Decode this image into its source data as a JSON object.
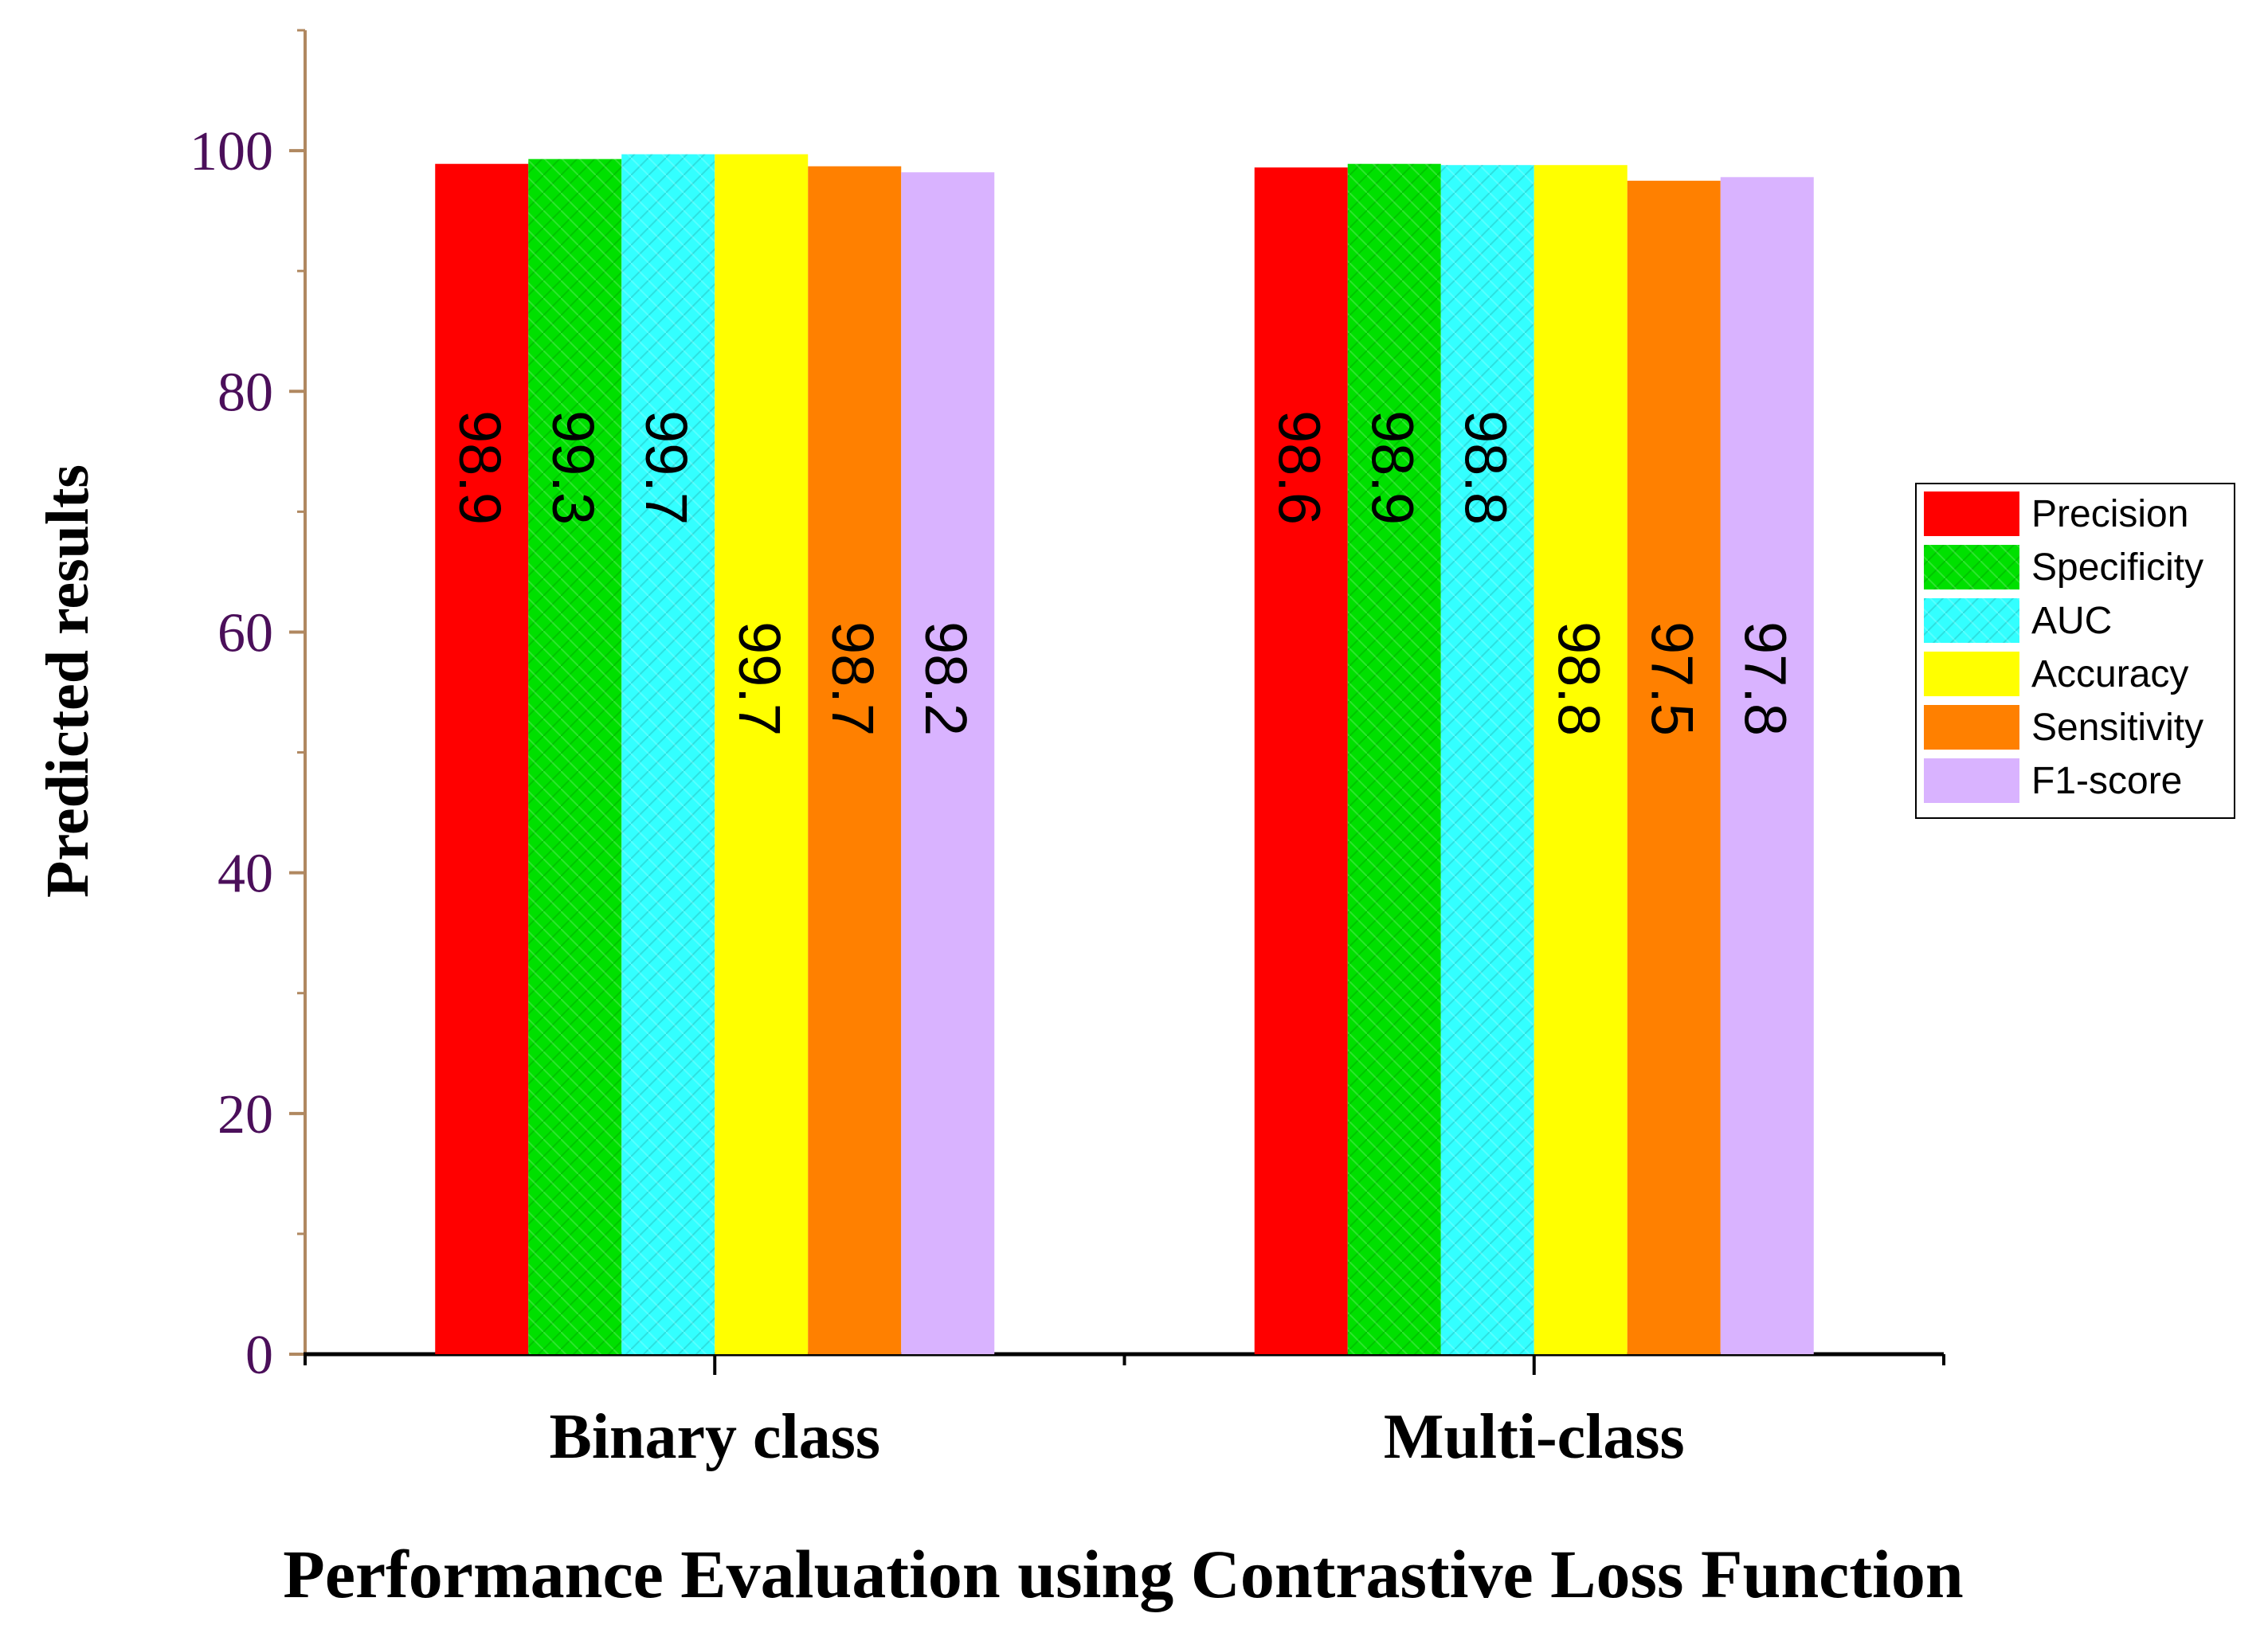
{
  "chart_data": {
    "type": "bar",
    "title": "",
    "xlabel": "Performance Evaluation using Contrastive Loss Function",
    "ylabel": "Predicted results",
    "categories": [
      "Binary class",
      "Multi-class"
    ],
    "ylim": [
      0,
      110
    ],
    "yticks": [
      0,
      20,
      40,
      60,
      80,
      100
    ],
    "legend_position": "right",
    "grid": false,
    "series": [
      {
        "name": "Precision",
        "color": "#ff0000",
        "values": [
          98.9,
          98.6
        ],
        "labels": [
          "98.9",
          "98.6"
        ],
        "hatched": false
      },
      {
        "name": "Specificity",
        "color": "#00e000",
        "values": [
          99.3,
          98.9
        ],
        "labels": [
          "99.3",
          "98.9"
        ],
        "hatched": true
      },
      {
        "name": "AUC",
        "color": "#33ffff",
        "values": [
          99.7,
          98.8
        ],
        "labels": [
          "99.7",
          "98.8"
        ],
        "hatched": true
      },
      {
        "name": "Accuracy",
        "color": "#ffff00",
        "values": [
          99.7,
          98.8
        ],
        "labels": [
          "99.7",
          "98.8"
        ],
        "hatched": false
      },
      {
        "name": "Sensitivity",
        "color": "#ff8000",
        "values": [
          98.7,
          97.5
        ],
        "labels": [
          "98.7",
          "97.5"
        ],
        "hatched": false
      },
      {
        "name": "F1-score",
        "color": "#d9b3ff",
        "values": [
          98.2,
          97.8
        ],
        "labels": [
          "98.2",
          "97.8"
        ],
        "hatched": false
      }
    ],
    "label_text_color": "#000000",
    "tick_label_color": "#4b0f5a",
    "axis_color": "#b08860"
  }
}
